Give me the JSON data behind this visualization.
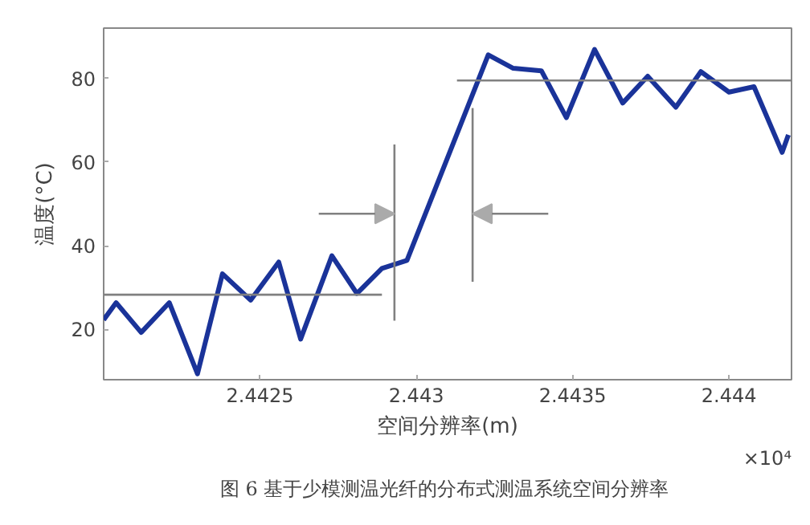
{
  "chart_data": {
    "type": "line",
    "xlabel": "空间分辨率(m)",
    "ylabel": "温度(°C)",
    "xlim": [
      2.442,
      2.4442
    ],
    "ylim": [
      8,
      92
    ],
    "xticks": [
      2.4425,
      2.443,
      2.4435,
      2.444
    ],
    "yticks": [
      20,
      40,
      60,
      80
    ],
    "grid": false,
    "annotations": [
      "×10⁴",
      "图 6  基于少模测温光纤的分布式测温系统空间分辨率"
    ],
    "series": [
      {
        "color": "#1a3399",
        "x": [
          2.442,
          2.44204,
          2.44212,
          2.44221,
          2.4423,
          2.44238,
          2.44247,
          2.44256,
          2.44263,
          2.44273,
          2.44281,
          2.44289,
          2.44297,
          2.44323,
          2.44331,
          2.4434,
          2.44348,
          2.44357,
          2.44366,
          2.44374,
          2.44383,
          2.44391,
          2.444,
          2.44408,
          2.44417,
          2.44419
        ],
        "values": [
          22.3,
          26.4,
          19.3,
          26.4,
          9.4,
          33.3,
          27,
          36.1,
          17.7,
          37.6,
          28.6,
          34.6,
          36.5,
          85.6,
          82.4,
          81.8,
          70.6,
          86.9,
          74.1,
          80.5,
          73.1,
          81.6,
          76.7,
          78,
          62.3,
          66.5
        ]
      },
      {
        "color": "#808080",
        "x": [
          2.442,
          2.44289
        ],
        "values": [
          28.3,
          28.3
        ]
      },
      {
        "color": "#808080",
        "x": [
          2.44313,
          2.4442
        ],
        "values": [
          79.5,
          79.5
        ]
      },
      {
        "color": "#808080",
        "x": [
          2.44293,
          2.44293
        ],
        "values": [
          64.2,
          22.1
        ]
      },
      {
        "color": "#808080",
        "x": [
          2.44318,
          2.44318
        ],
        "values": [
          72.9,
          31.4
        ]
      }
    ]
  }
}
